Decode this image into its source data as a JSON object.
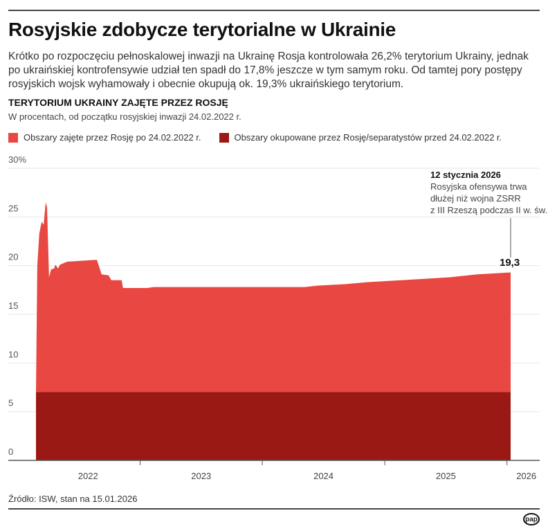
{
  "title": "Rosyjskie zdobycze terytorialne w Ukrainie",
  "lead": "Krótko po rozpoczęciu pełnoskalowej inwazji na Ukrainę Rosja kontrolowała 26,2% terytorium Ukrainy, jednak po ukraińskiej kontrofensywie udział ten spadł do 17,8% jeszcze w tym samym roku. Od tamtej pory postępy rosyjskich wojsk wyhamowały i obecnie okupują ok. 19,3% ukraińskiego terytorium.",
  "source": "Źródło: ISW, stan na 15.01.2026",
  "logo": "pap",
  "chart_data": {
    "type": "area",
    "title": "TERYTORIUM UKRAINY ZAJĘTE PRZEZ ROSJĘ",
    "subtitle": "W procentach, od początku rosyjskiej inwazji 24.02.2022 r.",
    "ylim": [
      0,
      30
    ],
    "yticks": [
      "0",
      "5",
      "10",
      "15",
      "20",
      "25",
      "30%"
    ],
    "ytick_values": [
      0,
      5,
      10,
      15,
      20,
      25,
      30
    ],
    "xlim": [
      "2022-02-24",
      "2026-01-12"
    ],
    "xtick_labels": [
      "2022",
      "2023",
      "2024",
      "2025",
      "2026"
    ],
    "grid": true,
    "legend_placement": "top-left",
    "series": [
      {
        "name": "Obszary okupowane przez Rosję/separatystów przed 24.02.2022 r.",
        "color": "#9a1915",
        "points": [
          [
            "2022-02-24",
            7.0
          ],
          [
            "2026-01-12",
            7.0
          ]
        ]
      },
      {
        "name": "Obszary zajęte przez Rosję po 24.02.2022 r.",
        "color": "#e84841",
        "points": [
          [
            "2022-02-24",
            7.0
          ],
          [
            "2022-02-28",
            20.0
          ],
          [
            "2022-03-06",
            23.3
          ],
          [
            "2022-03-13",
            24.5
          ],
          [
            "2022-03-19",
            24.2
          ],
          [
            "2022-03-25",
            26.5
          ],
          [
            "2022-03-29",
            26.0
          ],
          [
            "2022-04-04",
            18.8
          ],
          [
            "2022-04-10",
            19.6
          ],
          [
            "2022-04-19",
            19.7
          ],
          [
            "2022-04-23",
            20.1
          ],
          [
            "2022-05-01",
            19.7
          ],
          [
            "2022-05-07",
            20.1
          ],
          [
            "2022-05-28",
            20.4
          ],
          [
            "2022-08-25",
            20.6
          ],
          [
            "2022-09-08",
            19.1
          ],
          [
            "2022-09-29",
            19.0
          ],
          [
            "2022-10-07",
            18.5
          ],
          [
            "2022-11-07",
            18.5
          ],
          [
            "2022-11-11",
            17.7
          ],
          [
            "2023-01-23",
            17.7
          ],
          [
            "2023-02-10",
            17.8
          ],
          [
            "2024-05-06",
            17.8
          ],
          [
            "2024-06-16",
            17.95
          ],
          [
            "2024-09-07",
            18.1
          ],
          [
            "2024-11-08",
            18.3
          ],
          [
            "2025-02-19",
            18.5
          ],
          [
            "2025-07-14",
            18.8
          ],
          [
            "2025-10-05",
            19.1
          ],
          [
            "2026-01-12",
            19.3
          ]
        ]
      }
    ],
    "annotation": {
      "date_label": "12 stycznia 2026",
      "text_lines": [
        "Rosyjska ofensywa trwa",
        "dłużej niż wojna ZSRR",
        "z III Rzeszą podczas II w. św."
      ],
      "end_value_label": "19,3"
    }
  }
}
